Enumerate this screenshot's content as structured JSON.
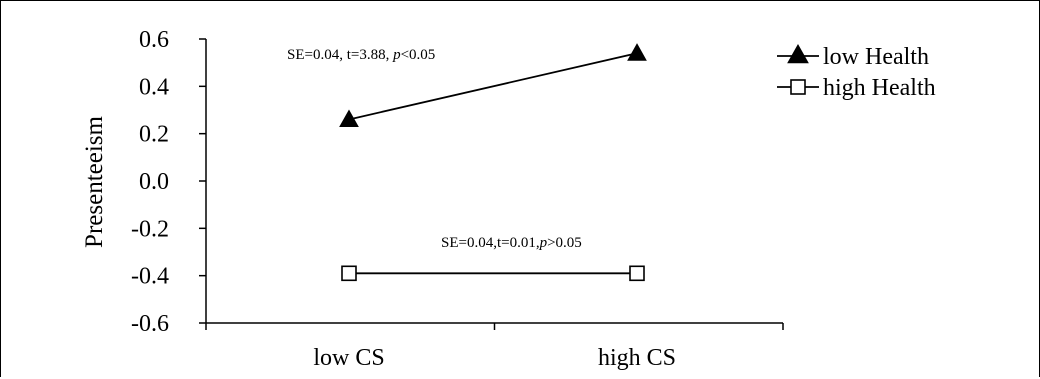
{
  "chart_data": {
    "type": "line",
    "categories": [
      "low CS",
      "high CS"
    ],
    "ylabel": "Presenteeism",
    "ylim": [
      -0.6,
      0.6
    ],
    "yticks": [
      "0.6",
      "0.4",
      "0.2",
      "0.0",
      "-0.2",
      "-0.4",
      "-0.6"
    ],
    "ytick_values": [
      0.6,
      0.4,
      0.2,
      0.0,
      -0.2,
      -0.4,
      -0.6
    ],
    "series": [
      {
        "name": "low Health",
        "marker": "filled-triangle",
        "values": [
          0.26,
          0.54
        ]
      },
      {
        "name": "high Health",
        "marker": "open-square",
        "values": [
          -0.39,
          -0.39
        ]
      }
    ],
    "annotations": [
      {
        "prefix": "SE=0.04, t=3.88, ",
        "p_label": "p",
        "suffix": "<0.05"
      },
      {
        "prefix": "SE=0.04,t=0.01,",
        "p_label": "p",
        "suffix": ">0.05"
      }
    ],
    "legend_position": "top-right",
    "grid": false,
    "line_color": "#000000"
  }
}
